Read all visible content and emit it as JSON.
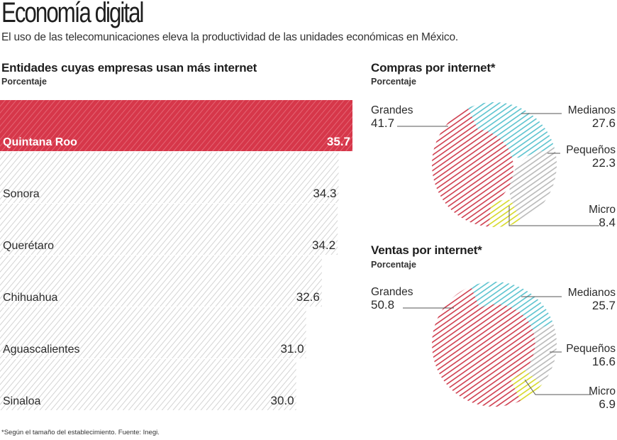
{
  "header": {
    "title": "Economía digital",
    "subtitle": "El uso de las telecomunicaciones eleva la productividad de las unidades económicas en México."
  },
  "footnote": "*Según el tamaño del establecimiento. Fuente: Inegi.",
  "colors": {
    "highlight": "#d6374a",
    "bar_stripe": "#c9c9c9",
    "grandes": "#cf3d4e",
    "medianos": "#5bc3cf",
    "pequenos": "#b9b9b9",
    "micro": "#d6d927",
    "leader": "#555555"
  },
  "chart_data": [
    {
      "type": "bar",
      "orientation": "horizontal",
      "title": "Entidades cuyas empresas usan más internet",
      "unit_label": "Porcentaje",
      "xlabel": "",
      "ylabel": "",
      "categories": [
        "Quintana Roo",
        "Sonora",
        "Querétaro",
        "Chihuahua",
        "Aguascalientes",
        "Sinaloa"
      ],
      "values": [
        35.7,
        34.3,
        34.2,
        32.6,
        31.0,
        30.0
      ],
      "value_labels": [
        "35.7",
        "34.3",
        "34.2",
        "32.6",
        "31.0",
        "30.0"
      ],
      "highlight_index": 0,
      "xlim": [
        0,
        35.7
      ],
      "grid": false
    },
    {
      "type": "pie",
      "style": "donut",
      "title": "Compras por internet*",
      "unit_label": "Porcentaje",
      "categories": [
        "Medianos",
        "Pequeños",
        "Micro",
        "Grandes"
      ],
      "values": [
        27.6,
        22.3,
        8.4,
        41.7
      ],
      "value_labels": [
        "27.6",
        "22.3",
        "8.4",
        "41.7"
      ]
    },
    {
      "type": "pie",
      "style": "donut",
      "title": "Ventas por internet*",
      "unit_label": "Porcentaje",
      "categories": [
        "Medianos",
        "Pequeños",
        "Micro",
        "Grandes"
      ],
      "values": [
        25.7,
        16.6,
        6.9,
        50.8
      ],
      "value_labels": [
        "25.7",
        "16.6",
        "6.9",
        "50.8"
      ]
    }
  ]
}
